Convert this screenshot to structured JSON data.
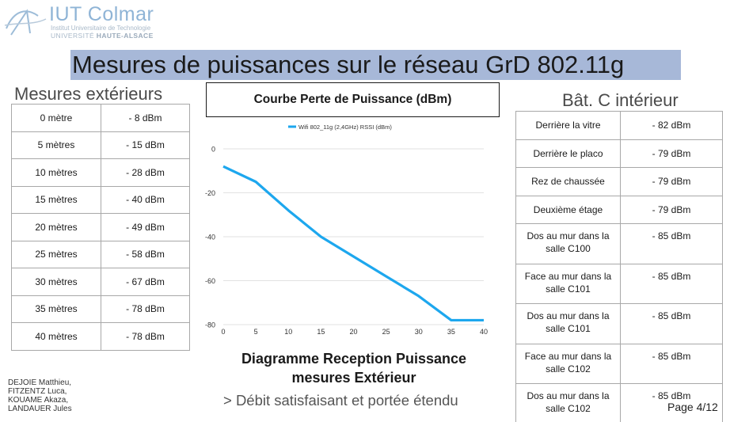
{
  "logo": {
    "title": "IUT Colmar",
    "line1": "Institut Universitaire de Technologie",
    "line2a": "UNIVERSITÉ ",
    "line2b": "HAUTE-ALSACE"
  },
  "title": "Mesures de puissances sur le réseau GrD 802.11g",
  "left_section": {
    "label": "Mesures extérieurs",
    "rows": [
      {
        "distance": "0 mètre",
        "value": "- 8 dBm"
      },
      {
        "distance": "5 mètres",
        "value": "- 15 dBm"
      },
      {
        "distance": "10 mètres",
        "value": "- 28 dBm"
      },
      {
        "distance": "15 mètres",
        "value": "- 40 dBm"
      },
      {
        "distance": "20 mètres",
        "value": "- 49 dBm"
      },
      {
        "distance": "25 mètres",
        "value": "- 58 dBm"
      },
      {
        "distance": "30 mètres",
        "value": "- 67 dBm"
      },
      {
        "distance": "35 mètres",
        "value": "- 78 dBm"
      },
      {
        "distance": "40 mètres",
        "value": "- 78 dBm"
      }
    ]
  },
  "right_section": {
    "label": "Bât. C intérieur",
    "rows": [
      {
        "place": "Derrière la vitre",
        "value": "- 82 dBm"
      },
      {
        "place": "Derrière le placo",
        "value": "- 79 dBm"
      },
      {
        "place": "Rez de chaussée",
        "value": "- 79 dBm"
      },
      {
        "place": "Deuxième étage",
        "value": "- 79 dBm"
      },
      {
        "place": "Dos au mur dans la salle C100",
        "value": "- 85 dBm"
      },
      {
        "place": "Face au mur dans la salle C101",
        "value": "- 85 dBm"
      },
      {
        "place": "Dos au mur dans la salle C101",
        "value": "- 85 dBm"
      },
      {
        "place": "Face au mur dans la salle C102",
        "value": "- 85 dBm"
      },
      {
        "place": "Dos au mur dans la salle C102",
        "value": "- 85 dBm"
      }
    ]
  },
  "chart_box_title": "Courbe Perte de Puissance (dBm)",
  "chart_data": {
    "type": "line",
    "x": [
      0,
      5,
      10,
      15,
      20,
      25,
      30,
      35,
      40
    ],
    "series": [
      {
        "name": "Wifi 802_11g (2,4GHz) RSSI (dBm)",
        "values": [
          -8,
          -15,
          -28,
          -40,
          -49,
          -58,
          -67,
          -78,
          -78
        ],
        "color": "#1da7ee"
      }
    ],
    "xticks": [
      0,
      5,
      10,
      15,
      20,
      25,
      30,
      35,
      40
    ],
    "yticks": [
      0,
      -20,
      -40,
      -60,
      -80
    ],
    "xlim": [
      0,
      40
    ],
    "ylim": [
      -80,
      0
    ],
    "grid": "horizontal",
    "legend": "top-center"
  },
  "diagram_title_line1": "Diagramme Reception Puissance",
  "diagram_title_line2": "mesures Extérieur",
  "note": "> Débit satisfaisant et portée étendu",
  "authors": [
    "DEJOIE Matthieu,",
    "FITZENTZ Luca,",
    "KOUAME Akaza,",
    "LANDAUER Jules"
  ],
  "page": "Page 4/12"
}
